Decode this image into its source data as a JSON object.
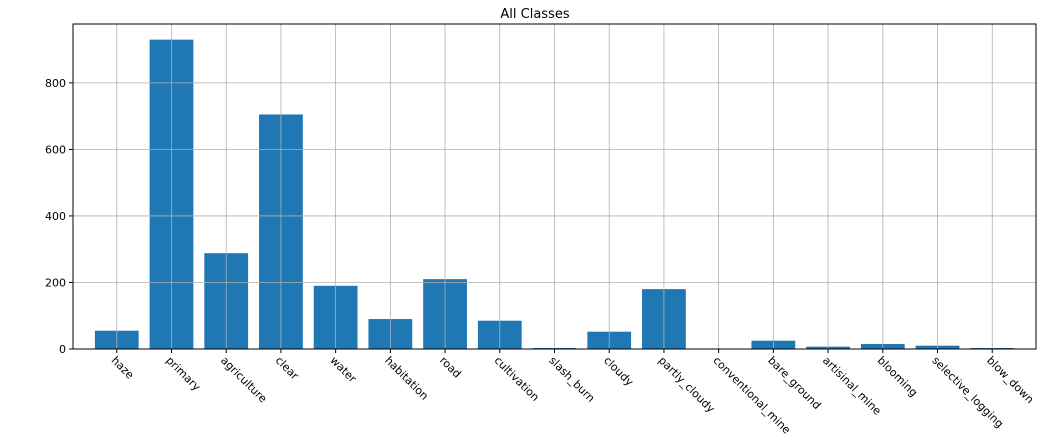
{
  "chart_data": {
    "type": "bar",
    "title": "All Classes",
    "xlabel": "",
    "ylabel": "",
    "categories": [
      "haze",
      "primary",
      "agriculture",
      "clear",
      "water",
      "habitation",
      "road",
      "cultivation",
      "slash_burn",
      "cloudy",
      "partly_cloudy",
      "conventional_mine",
      "bare_ground",
      "artisinal_mine",
      "blooming",
      "selective_logging",
      "blow_down"
    ],
    "values": [
      55,
      930,
      288,
      705,
      190,
      90,
      210,
      85,
      3,
      52,
      180,
      0,
      25,
      7,
      15,
      10,
      3
    ],
    "ylim": [
      0,
      977
    ],
    "yticks": [
      0,
      200,
      400,
      600,
      800
    ],
    "grid": true,
    "bar_color": "#1f77b4",
    "grid_color": "#b0b0b0",
    "xtick_rotation": -45
  }
}
